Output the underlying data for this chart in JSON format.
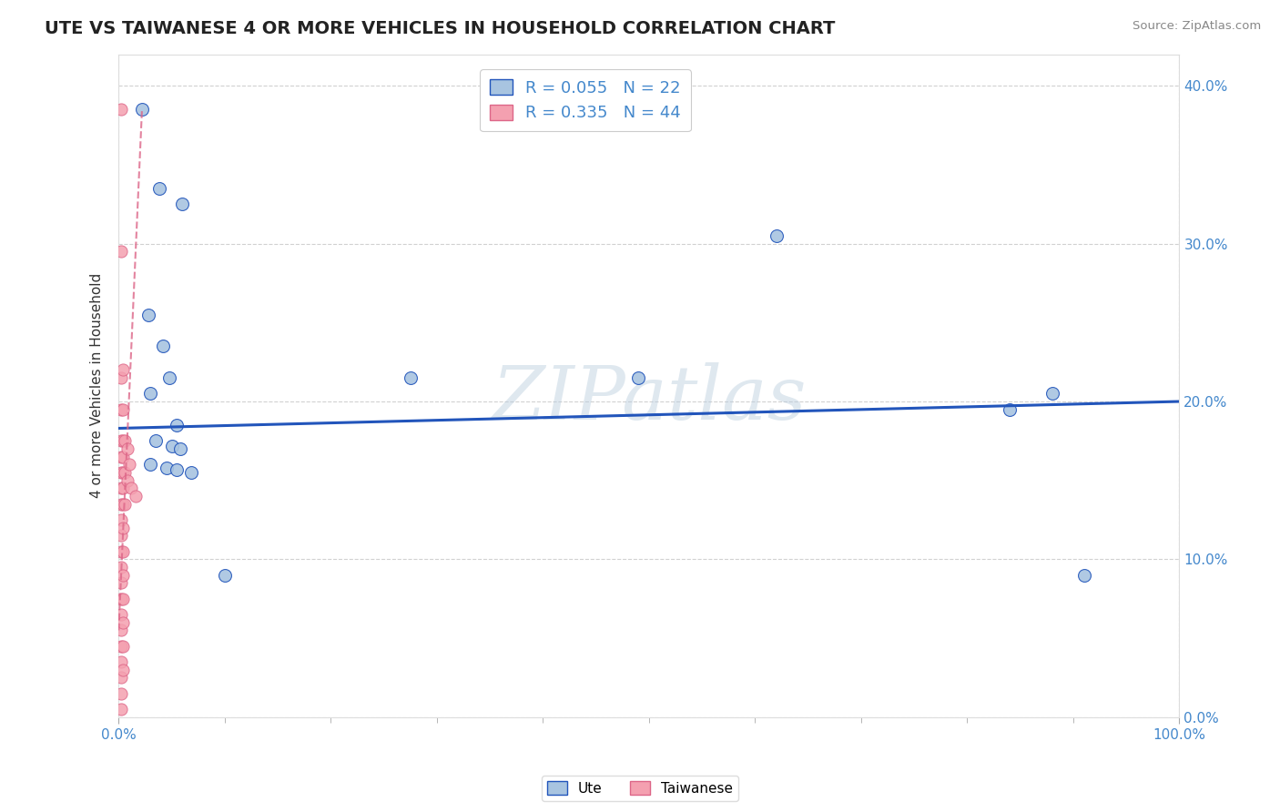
{
  "title": "UTE VS TAIWANESE 4 OR MORE VEHICLES IN HOUSEHOLD CORRELATION CHART",
  "source": "Source: ZipAtlas.com",
  "ylabel": "4 or more Vehicles in Household",
  "watermark": "ZIPatlas",
  "xlim": [
    0.0,
    1.0
  ],
  "ylim": [
    0.0,
    0.42
  ],
  "xtick_major": [
    0.0,
    1.0
  ],
  "xtick_major_labels": [
    "0.0%",
    "100.0%"
  ],
  "xtick_minor": [
    0.1,
    0.2,
    0.3,
    0.4,
    0.5,
    0.6,
    0.7,
    0.8,
    0.9
  ],
  "ytick_major": [
    0.0,
    0.1,
    0.2,
    0.3,
    0.4
  ],
  "ytick_labels_right": [
    "0.0%",
    "10.0%",
    "20.0%",
    "30.0%",
    "40.0%"
  ],
  "ytick_grid": [
    0.1,
    0.2,
    0.3,
    0.4
  ],
  "legend_ute_R": "0.055",
  "legend_ute_N": "22",
  "legend_tai_R": "0.335",
  "legend_tai_N": "44",
  "ute_color": "#a8c4e0",
  "tai_color": "#f4a0b0",
  "ute_line_color": "#2255bb",
  "tai_line_color": "#dd6688",
  "ute_scatter": [
    [
      0.022,
      0.385
    ],
    [
      0.038,
      0.335
    ],
    [
      0.06,
      0.325
    ],
    [
      0.028,
      0.255
    ],
    [
      0.042,
      0.235
    ],
    [
      0.048,
      0.215
    ],
    [
      0.03,
      0.205
    ],
    [
      0.055,
      0.185
    ],
    [
      0.035,
      0.175
    ],
    [
      0.05,
      0.172
    ],
    [
      0.058,
      0.17
    ],
    [
      0.03,
      0.16
    ],
    [
      0.045,
      0.158
    ],
    [
      0.055,
      0.157
    ],
    [
      0.068,
      0.155
    ],
    [
      0.1,
      0.09
    ],
    [
      0.275,
      0.215
    ],
    [
      0.62,
      0.305
    ],
    [
      0.88,
      0.205
    ],
    [
      0.91,
      0.09
    ],
    [
      0.49,
      0.215
    ],
    [
      0.84,
      0.195
    ]
  ],
  "tai_scatter": [
    [
      0.002,
      0.215
    ],
    [
      0.002,
      0.195
    ],
    [
      0.002,
      0.175
    ],
    [
      0.002,
      0.165
    ],
    [
      0.002,
      0.155
    ],
    [
      0.002,
      0.145
    ],
    [
      0.002,
      0.135
    ],
    [
      0.002,
      0.125
    ],
    [
      0.002,
      0.115
    ],
    [
      0.002,
      0.105
    ],
    [
      0.002,
      0.095
    ],
    [
      0.002,
      0.085
    ],
    [
      0.002,
      0.075
    ],
    [
      0.002,
      0.065
    ],
    [
      0.002,
      0.055
    ],
    [
      0.002,
      0.045
    ],
    [
      0.002,
      0.035
    ],
    [
      0.002,
      0.025
    ],
    [
      0.002,
      0.015
    ],
    [
      0.002,
      0.005
    ],
    [
      0.004,
      0.22
    ],
    [
      0.004,
      0.195
    ],
    [
      0.004,
      0.175
    ],
    [
      0.004,
      0.165
    ],
    [
      0.004,
      0.155
    ],
    [
      0.004,
      0.145
    ],
    [
      0.004,
      0.135
    ],
    [
      0.004,
      0.12
    ],
    [
      0.004,
      0.105
    ],
    [
      0.004,
      0.09
    ],
    [
      0.004,
      0.075
    ],
    [
      0.004,
      0.06
    ],
    [
      0.004,
      0.045
    ],
    [
      0.004,
      0.03
    ],
    [
      0.006,
      0.175
    ],
    [
      0.006,
      0.155
    ],
    [
      0.006,
      0.135
    ],
    [
      0.008,
      0.17
    ],
    [
      0.008,
      0.15
    ],
    [
      0.01,
      0.16
    ],
    [
      0.012,
      0.145
    ],
    [
      0.016,
      0.14
    ],
    [
      0.002,
      0.385
    ],
    [
      0.002,
      0.295
    ]
  ],
  "ute_trend_x": [
    0.0,
    1.0
  ],
  "ute_trend_y": [
    0.183,
    0.2
  ],
  "tai_trend_x": [
    0.0,
    0.022
  ],
  "tai_trend_y": [
    0.055,
    0.385
  ],
  "background_color": "#ffffff",
  "grid_color": "#cccccc",
  "title_color": "#222222",
  "source_color": "#888888",
  "tick_color": "#4488cc"
}
